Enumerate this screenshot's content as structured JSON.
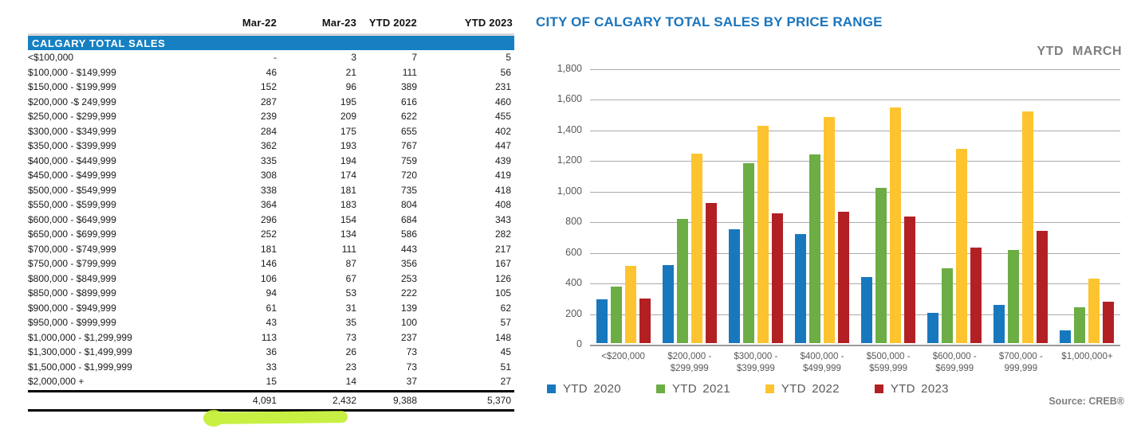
{
  "table": {
    "section_title": "CALGARY TOTAL SALES",
    "columns": [
      "Mar-22",
      "Mar-23",
      "YTD 2022",
      "YTD 2023"
    ],
    "rows": [
      {
        "label": "<$100,000",
        "values": [
          "-",
          "3",
          "7",
          "5"
        ]
      },
      {
        "label": "$100,000 - $149,999",
        "values": [
          "46",
          "21",
          "111",
          "56"
        ]
      },
      {
        "label": "$150,000 - $199,999",
        "values": [
          "152",
          "96",
          "389",
          "231"
        ]
      },
      {
        "label": "$200,000 -$ 249,999",
        "values": [
          "287",
          "195",
          "616",
          "460"
        ]
      },
      {
        "label": "$250,000 - $299,999",
        "values": [
          "239",
          "209",
          "622",
          "455"
        ]
      },
      {
        "label": "$300,000 - $349,999",
        "values": [
          "284",
          "175",
          "655",
          "402"
        ]
      },
      {
        "label": "$350,000 - $399,999",
        "values": [
          "362",
          "193",
          "767",
          "447"
        ]
      },
      {
        "label": "$400,000 - $449,999",
        "values": [
          "335",
          "194",
          "759",
          "439"
        ]
      },
      {
        "label": "$450,000 - $499,999",
        "values": [
          "308",
          "174",
          "720",
          "419"
        ]
      },
      {
        "label": "$500,000 - $549,999",
        "values": [
          "338",
          "181",
          "735",
          "418"
        ]
      },
      {
        "label": "$550,000 - $599,999",
        "values": [
          "364",
          "183",
          "804",
          "408"
        ]
      },
      {
        "label": "$600,000 - $649,999",
        "values": [
          "296",
          "154",
          "684",
          "343"
        ]
      },
      {
        "label": "$650,000 - $699,999",
        "values": [
          "252",
          "134",
          "586",
          "282"
        ]
      },
      {
        "label": "$700,000 - $749,999",
        "values": [
          "181",
          "111",
          "443",
          "217"
        ]
      },
      {
        "label": "$750,000 - $799,999",
        "values": [
          "146",
          "87",
          "356",
          "167"
        ]
      },
      {
        "label": "$800,000 - $849,999",
        "values": [
          "106",
          "67",
          "253",
          "126"
        ]
      },
      {
        "label": "$850,000 - $899,999",
        "values": [
          "94",
          "53",
          "222",
          "105"
        ]
      },
      {
        "label": "$900,000 - $949,999",
        "values": [
          "61",
          "31",
          "139",
          "62"
        ]
      },
      {
        "label": "$950,000 - $999,999",
        "values": [
          "43",
          "35",
          "100",
          "57"
        ]
      },
      {
        "label": "$1,000,000 - $1,299,999",
        "values": [
          "113",
          "73",
          "237",
          "148"
        ]
      },
      {
        "label": "$1,300,000 - $1,499,999",
        "values": [
          "36",
          "26",
          "73",
          "45"
        ]
      },
      {
        "label": "$1,500,000 - $1,999,999",
        "values": [
          "33",
          "23",
          "73",
          "51"
        ]
      },
      {
        "label": "$2,000,000 +",
        "values": [
          "15",
          "14",
          "37",
          "27"
        ]
      }
    ],
    "totals": [
      "4,091",
      "2,432",
      "9,388",
      "5,370"
    ]
  },
  "chart": {
    "title": "CITY OF CALGARY TOTAL SALES BY PRICE RANGE",
    "subtitle": "YTD  MARCH",
    "source": "Source: CREB®"
  },
  "chart_data": {
    "type": "bar",
    "title": "CITY OF CALGARY TOTAL SALES BY PRICE RANGE",
    "subtitle": "YTD MARCH",
    "categories": [
      "<$200,000",
      "$200,000 - $299,999",
      "$300,000 - $399,999",
      "$400,000 - $499,999",
      "$500,000 - $599,999",
      "$600,000 - $699,999",
      "$700,000 - 999,999",
      "$1,000,000+"
    ],
    "category_lines": [
      [
        "<$200,000"
      ],
      [
        "$200,000 -",
        "$299,999"
      ],
      [
        "$300,000 -",
        "$399,999"
      ],
      [
        "$400,000 -",
        "$499,999"
      ],
      [
        "$500,000 -",
        "$599,999"
      ],
      [
        "$600,000 -",
        "$699,999"
      ],
      [
        "$700,000 -",
        "999,999"
      ],
      [
        "$1,000,000+"
      ]
    ],
    "series": [
      {
        "name": "YTD 2020",
        "color": "#1878BE",
        "values": [
          285,
          508,
          745,
          715,
          430,
          200,
          250,
          85
        ]
      },
      {
        "name": "YTD 2021",
        "color": "#6CAD45",
        "values": [
          370,
          812,
          1175,
          1232,
          1015,
          487,
          610,
          232
        ]
      },
      {
        "name": "YTD 2022",
        "color": "#FDC42F",
        "values": [
          507,
          1238,
          1422,
          1479,
          1539,
          1270,
          1513,
          420
        ]
      },
      {
        "name": "YTD 2023",
        "color": "#B22024",
        "values": [
          292,
          915,
          849,
          858,
          826,
          625,
          734,
          271
        ]
      }
    ],
    "xlabel": "",
    "ylabel": "",
    "ylim": [
      0,
      1800
    ],
    "ytick_step": 200,
    "grid": true,
    "legend_position": "bottom",
    "source": "Source: CREB®"
  },
  "annotations": {
    "highlight_marker": {
      "description": "yellow-green marker stroke under Mar-22 and Mar-23 totals",
      "color": "#C3EF34"
    }
  },
  "colors": {
    "section_bar": "#1780C2",
    "chart_title": "#1B75BC",
    "gridline": "#ABABAB",
    "axis_text": "#595959",
    "muted_text": "#7F7F7F"
  }
}
